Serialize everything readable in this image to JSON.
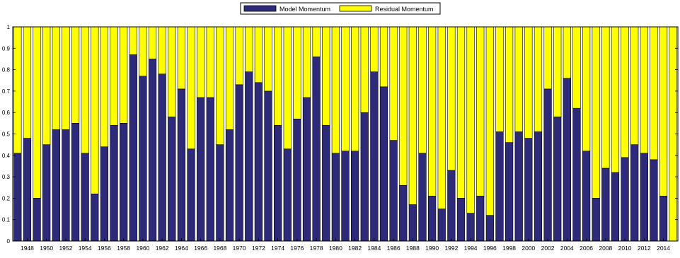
{
  "chart_data": {
    "type": "bar",
    "stacked": true,
    "normalized": true,
    "title": "",
    "xlabel": "",
    "ylabel": "",
    "ylim": [
      0,
      1
    ],
    "y_ticks": [
      "0",
      "0.1",
      "0.2",
      "0.3",
      "0.4",
      "0.5",
      "0.6",
      "0.7",
      "0.8",
      "0.9",
      "1"
    ],
    "legend_position": "top-center",
    "grid": false,
    "categories": [
      "1947",
      "1948",
      "1949",
      "1950",
      "1951",
      "1952",
      "1953",
      "1954",
      "1955",
      "1956",
      "1957",
      "1958",
      "1959",
      "1960",
      "1961",
      "1962",
      "1963",
      "1964",
      "1965",
      "1966",
      "1967",
      "1968",
      "1969",
      "1970",
      "1971",
      "1972",
      "1973",
      "1974",
      "1975",
      "1976",
      "1977",
      "1978",
      "1979",
      "1980",
      "1981",
      "1982",
      "1983",
      "1984",
      "1985",
      "1986",
      "1987",
      "1988",
      "1989",
      "1990",
      "1991",
      "1992",
      "1993",
      "1994",
      "1995",
      "1996",
      "1997",
      "1998",
      "1999",
      "2000",
      "2001",
      "2002",
      "2003",
      "2004",
      "2005",
      "2006",
      "2007",
      "2008",
      "2009",
      "2010",
      "2011",
      "2012",
      "2013",
      "2014",
      "2015"
    ],
    "x_tick_labels": [
      "1948",
      "1950",
      "1952",
      "1954",
      "1956",
      "1958",
      "1960",
      "1962",
      "1964",
      "1966",
      "1968",
      "1970",
      "1972",
      "1974",
      "1976",
      "1978",
      "1980",
      "1982",
      "1984",
      "1986",
      "1988",
      "1990",
      "1992",
      "1994",
      "1996",
      "1998",
      "2000",
      "2002",
      "2004",
      "2006",
      "2008",
      "2010",
      "2012",
      "2014"
    ],
    "series": [
      {
        "name": "Model Momentum",
        "color": "#2e2a7a",
        "values": [
          0.41,
          0.48,
          0.2,
          0.45,
          0.52,
          0.52,
          0.55,
          0.41,
          0.22,
          0.44,
          0.54,
          0.55,
          0.87,
          0.77,
          0.85,
          0.78,
          0.58,
          0.71,
          0.43,
          0.67,
          0.67,
          0.45,
          0.52,
          0.73,
          0.79,
          0.74,
          0.7,
          0.54,
          0.43,
          0.57,
          0.67,
          0.86,
          0.54,
          0.41,
          0.42,
          0.42,
          0.6,
          0.79,
          0.72,
          0.47,
          0.26,
          0.17,
          0.41,
          0.21,
          0.15,
          0.33,
          0.2,
          0.13,
          0.21,
          0.12,
          0.51,
          0.46,
          0.51,
          0.48,
          0.51,
          0.71,
          0.58,
          0.76,
          0.62,
          0.42,
          0.2,
          0.34,
          0.32,
          0.39,
          0.45,
          0.41,
          0.38,
          0.21,
          0.0
        ]
      },
      {
        "name": "Residual Momentum",
        "color": "#ffff00",
        "values": [
          0.59,
          0.52,
          0.8,
          0.55,
          0.48,
          0.48,
          0.45,
          0.59,
          0.78,
          0.56,
          0.46,
          0.45,
          0.13,
          0.23,
          0.15,
          0.22,
          0.42,
          0.29,
          0.57,
          0.33,
          0.33,
          0.55,
          0.48,
          0.27,
          0.21,
          0.26,
          0.3,
          0.46,
          0.57,
          0.43,
          0.33,
          0.14,
          0.46,
          0.59,
          0.58,
          0.58,
          0.4,
          0.21,
          0.28,
          0.53,
          0.74,
          0.83,
          0.59,
          0.79,
          0.85,
          0.67,
          0.8,
          0.87,
          0.79,
          0.88,
          0.49,
          0.54,
          0.49,
          0.52,
          0.49,
          0.29,
          0.42,
          0.24,
          0.38,
          0.58,
          0.8,
          0.66,
          0.68,
          0.61,
          0.55,
          0.59,
          0.62,
          0.79,
          1.0
        ]
      }
    ]
  }
}
